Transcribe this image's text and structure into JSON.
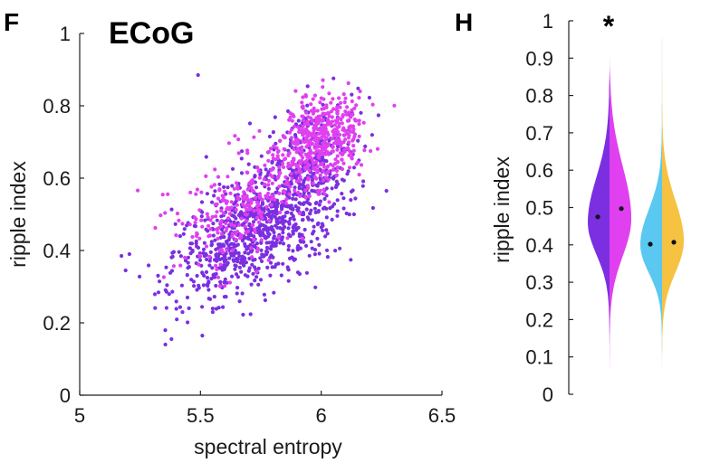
{
  "panels": {
    "f": "F",
    "h": "H"
  },
  "chart_data": [
    {
      "type": "scatter",
      "title": "ECoG",
      "xlabel": "spectral entropy",
      "ylabel": "ripple index",
      "xlim": [
        5,
        6.5
      ],
      "ylim": [
        0,
        1
      ],
      "xticks": [
        5,
        5.5,
        6,
        6.5
      ],
      "xtick_labels": [
        "5",
        "5.5",
        "6",
        "6.5"
      ],
      "yticks": [
        0,
        0.2,
        0.4,
        0.6,
        0.8,
        1
      ],
      "ytick_labels": [
        "0",
        "0.2",
        "0.4",
        "0.6",
        "0.8",
        "1"
      ],
      "series": [
        {
          "name": "purple",
          "color": "#7b2fe0",
          "n": 1100,
          "main_cluster": {
            "x_mean": 5.74,
            "x_sd": 0.17,
            "y_mean": 0.46,
            "y_sd": 0.095,
            "corr": 0.55
          },
          "upper_cluster": {
            "x_mean": 5.97,
            "x_sd": 0.1,
            "y_mean": 0.68,
            "y_sd": 0.08,
            "corr": 0.3
          },
          "upper_fraction": 0.2,
          "extremes": [
            [
              5.49,
              0.885
            ],
            [
              5.38,
              0.155
            ],
            [
              5.19,
              0.345
            ],
            [
              6.27,
              0.565
            ]
          ]
        },
        {
          "name": "magenta",
          "color": "#e040f0",
          "n": 700,
          "main_cluster": {
            "x_mean": 6.0,
            "x_sd": 0.085,
            "y_mean": 0.71,
            "y_sd": 0.065,
            "corr": 0.3
          },
          "lower_cluster": {
            "x_mean": 5.68,
            "x_sd": 0.13,
            "y_mean": 0.52,
            "y_sd": 0.08,
            "corr": 0.4
          },
          "lower_fraction": 0.33
        }
      ]
    },
    {
      "type": "violin",
      "ylabel": "ripple index",
      "ylim": [
        0,
        1
      ],
      "yticks": [
        0,
        0.1,
        0.2,
        0.3,
        0.4,
        0.5,
        0.6,
        0.7,
        0.8,
        0.9,
        1
      ],
      "ytick_labels": [
        "0",
        "0.1",
        "0.2",
        "0.3",
        "0.4",
        "0.5",
        "0.6",
        "0.7",
        "0.8",
        "0.9",
        "1"
      ],
      "significance": "*",
      "violins": [
        {
          "left_color": "#7b2fe0",
          "right_color": "#e040f0",
          "left_dist": {
            "mode": 0.46,
            "sd_low": 0.085,
            "sd_high": 0.12,
            "min": 0.12,
            "max": 0.88
          },
          "right_dist": {
            "mode": 0.47,
            "sd_low": 0.1,
            "sd_high": 0.14,
            "min": 0.05,
            "max": 0.9
          },
          "left_median": 0.475,
          "right_median": 0.497
        },
        {
          "left_color": "#5ac8f0",
          "right_color": "#f5c242",
          "left_dist": {
            "mode": 0.4,
            "sd_low": 0.075,
            "sd_high": 0.095,
            "min": 0.06,
            "max": 0.97
          },
          "right_dist": {
            "mode": 0.41,
            "sd_low": 0.085,
            "sd_high": 0.11,
            "min": 0.08,
            "max": 0.97
          },
          "left_median": 0.402,
          "right_median": 0.407
        }
      ]
    }
  ]
}
